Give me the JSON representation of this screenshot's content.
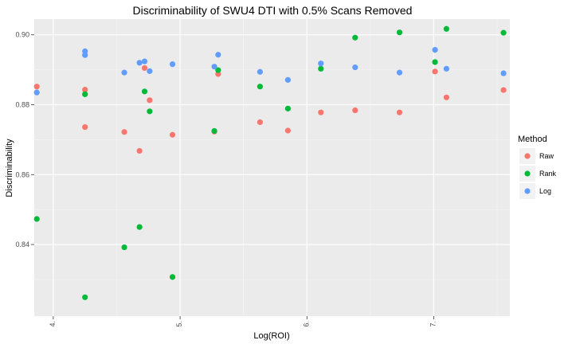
{
  "chart_data": {
    "type": "scatter",
    "title": "Discriminability of SWU4 DTI with 0.5% Scans Removed",
    "xlabel": "Log(ROI)",
    "ylabel": "Discriminability",
    "xlim": [
      3.85,
      7.6
    ],
    "ylim": [
      0.8195,
      0.9045
    ],
    "xticks": [
      4,
      5,
      6,
      7
    ],
    "xtick_labels": [
      "4.",
      "5.",
      "6.",
      "7."
    ],
    "yticks": [
      0.84,
      0.86,
      0.88,
      0.9
    ],
    "ytick_labels": [
      "0.84",
      "0.86",
      "0.88",
      "0.90"
    ],
    "grid": true,
    "legend": {
      "title": "Method",
      "position": "right"
    },
    "series": [
      {
        "name": "Raw",
        "color": "#f8766d",
        "points": [
          [
            3.87,
            0.8852
          ],
          [
            4.25,
            0.8843
          ],
          [
            4.25,
            0.8736
          ],
          [
            4.56,
            0.8722
          ],
          [
            4.68,
            0.8668
          ],
          [
            4.72,
            0.8905
          ],
          [
            4.76,
            0.8813
          ],
          [
            4.94,
            0.8714
          ],
          [
            5.27,
            0.8723
          ],
          [
            5.3,
            0.8888
          ],
          [
            5.63,
            0.875
          ],
          [
            5.85,
            0.8726
          ],
          [
            6.11,
            0.8778
          ],
          [
            6.38,
            0.8784
          ],
          [
            6.73,
            0.8778
          ],
          [
            7.01,
            0.8895
          ],
          [
            7.1,
            0.8821
          ],
          [
            7.55,
            0.8842
          ]
        ]
      },
      {
        "name": "Rank",
        "color": "#00ba38",
        "points": [
          [
            3.87,
            0.8473
          ],
          [
            4.25,
            0.883
          ],
          [
            4.25,
            0.8249
          ],
          [
            4.56,
            0.8392
          ],
          [
            4.68,
            0.845
          ],
          [
            4.72,
            0.8838
          ],
          [
            4.76,
            0.8781
          ],
          [
            4.94,
            0.8307
          ],
          [
            5.27,
            0.8725
          ],
          [
            5.3,
            0.8899
          ],
          [
            5.63,
            0.8852
          ],
          [
            5.85,
            0.8789
          ],
          [
            6.11,
            0.8903
          ],
          [
            6.38,
            0.8992
          ],
          [
            6.73,
            0.9007
          ],
          [
            7.01,
            0.8922
          ],
          [
            7.1,
            0.9017
          ],
          [
            7.55,
            0.9006
          ]
        ]
      },
      {
        "name": "Log",
        "color": "#619cff",
        "points": [
          [
            3.87,
            0.8835
          ],
          [
            4.25,
            0.8953
          ],
          [
            4.25,
            0.8942
          ],
          [
            4.56,
            0.8892
          ],
          [
            4.68,
            0.892
          ],
          [
            4.72,
            0.8924
          ],
          [
            4.76,
            0.8896
          ],
          [
            4.94,
            0.8916
          ],
          [
            5.27,
            0.8909
          ],
          [
            5.3,
            0.8943
          ],
          [
            5.63,
            0.8894
          ],
          [
            5.85,
            0.8871
          ],
          [
            6.11,
            0.8918
          ],
          [
            6.38,
            0.8907
          ],
          [
            6.73,
            0.8892
          ],
          [
            7.01,
            0.8957
          ],
          [
            7.1,
            0.8903
          ],
          [
            7.55,
            0.889
          ]
        ]
      }
    ]
  }
}
